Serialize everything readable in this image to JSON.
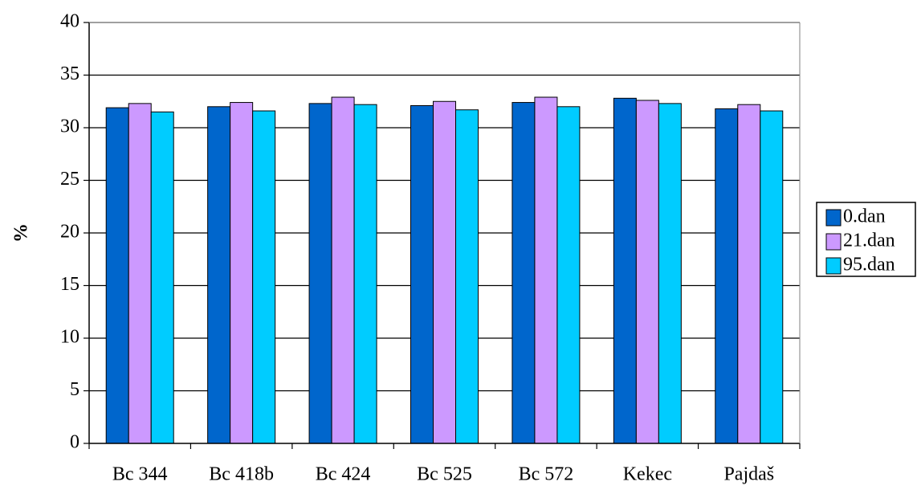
{
  "chart_data": {
    "type": "bar",
    "title": "",
    "xlabel": "",
    "ylabel": "%",
    "ylim": [
      0,
      40
    ],
    "yticks": [
      0,
      5,
      10,
      15,
      20,
      25,
      30,
      35,
      40
    ],
    "grid": true,
    "legend": "right",
    "categories": [
      "Bc 344",
      "Bc 418b",
      "Bc 424",
      "Bc 525",
      "Bc 572",
      "Kekec",
      "Pajdaš"
    ],
    "series": [
      {
        "name": "0.dan",
        "color": "#0066CC",
        "values": [
          31.9,
          32.0,
          32.3,
          32.1,
          32.4,
          32.8,
          31.8
        ]
      },
      {
        "name": "21.dan",
        "color": "#CC99FF",
        "values": [
          32.3,
          32.4,
          32.9,
          32.5,
          32.9,
          32.6,
          32.2
        ]
      },
      {
        "name": "95.dan",
        "color": "#00CCFF",
        "values": [
          31.5,
          31.6,
          32.2,
          31.7,
          32.0,
          32.3,
          31.6
        ]
      }
    ]
  }
}
